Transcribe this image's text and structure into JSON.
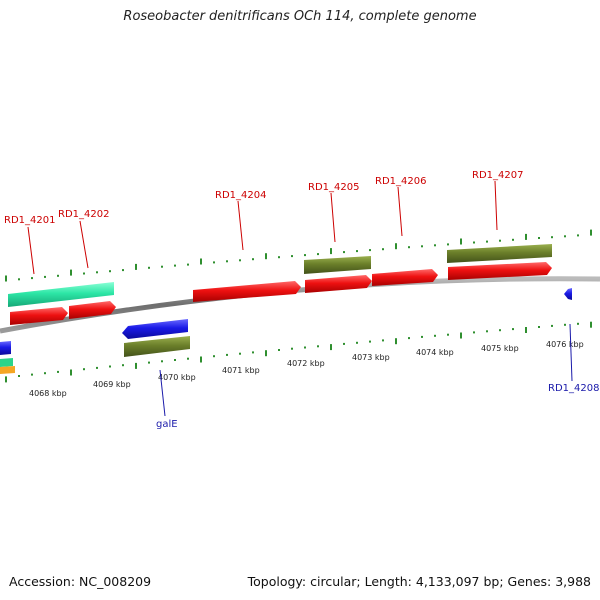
{
  "title": "Roseobacter denitrificans OCh 114, complete genome",
  "footer": {
    "accession": "Accession: NC_008209",
    "summary": "Topology: circular; Length: 4,133,097 bp; Genes: 3,988"
  },
  "colors": {
    "label_forward": "#cc0000",
    "label_reverse": "#0000aa",
    "tick": "#2f8f2f",
    "backbone": "#888888",
    "cds_red": "#e81010",
    "cds_olive": "#6b7f2a",
    "cds_teal": "#2de6a6",
    "cds_blue": "#1a1ae6",
    "cds_orange": "#f5a623"
  },
  "ruler": {
    "labels": [
      "4068 kbp",
      "4069 kbp",
      "4070 kbp",
      "4071 kbp",
      "4072 kbp",
      "4073 kbp",
      "4074 kbp",
      "4075 kbp",
      "4076 kbp"
    ]
  },
  "gene_labels": [
    "RD1_4201",
    "RD1_4202",
    "RD1_4204",
    "RD1_4205",
    "RD1_4206",
    "RD1_4207",
    "galE",
    "RD1_4208"
  ]
}
